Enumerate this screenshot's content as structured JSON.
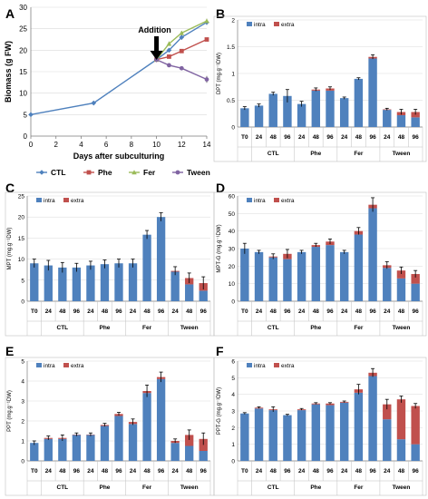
{
  "colors": {
    "intra": "#4F81BD",
    "extra": "#C0504D",
    "ctl": "#4F81BD",
    "phe": "#C0504D",
    "fer": "#9BBB59",
    "tween": "#8064A2",
    "grid": "#D9D9D9",
    "axis": "#808080",
    "text": "#000000"
  },
  "chart_data": [
    {
      "panel": "A",
      "type": "line",
      "xlabel": "Days after subculturing",
      "ylabel": "Biomass (g FW)",
      "xlim": [
        0,
        14
      ],
      "ylim": [
        0,
        30
      ],
      "xticks": [
        0,
        2,
        4,
        6,
        8,
        10,
        12,
        14
      ],
      "yticks": [
        0,
        5,
        10,
        15,
        20,
        25,
        30
      ],
      "annotation": "Addition",
      "annotation_x": 10,
      "legend_position": "bottom",
      "series": [
        {
          "name": "CTL",
          "x": [
            0,
            5,
            10,
            11,
            12,
            14
          ],
          "y": [
            5.0,
            7.7,
            17.8,
            20.0,
            23.0,
            26.5
          ],
          "errors": [
            0.1,
            0.5,
            0.5,
            0.4,
            0.6,
            0.6
          ]
        },
        {
          "name": "Phe",
          "x": [
            10,
            11,
            12,
            14
          ],
          "y": [
            17.8,
            18.5,
            19.8,
            22.5
          ],
          "errors": [
            0.5,
            0.4,
            0.4,
            0.4
          ]
        },
        {
          "name": "Fer",
          "x": [
            10,
            11,
            12,
            14
          ],
          "y": [
            17.8,
            21.5,
            24.0,
            26.8
          ],
          "errors": [
            0.5,
            0.5,
            0.5,
            0.5
          ]
        },
        {
          "name": "Tween",
          "x": [
            10,
            11,
            12,
            14
          ],
          "y": [
            17.8,
            16.5,
            15.8,
            13.2
          ],
          "errors": [
            0.5,
            0.4,
            0.4,
            0.8
          ]
        }
      ]
    },
    {
      "panel": "B",
      "type": "bar",
      "ylabel": "DPT (mg.g⁻¹DW)",
      "ylim": [
        0,
        2
      ],
      "yticks": [
        0,
        0.5,
        1,
        1.5,
        2
      ],
      "legend": [
        "intra",
        "extra"
      ],
      "categories": [
        "T0",
        "24",
        "48",
        "96",
        "24",
        "48",
        "96",
        "24",
        "48",
        "96",
        "24",
        "48",
        "96"
      ],
      "groups": [
        {
          "name": "CTL",
          "from": 1,
          "to": 3
        },
        {
          "name": "Phe",
          "from": 4,
          "to": 6
        },
        {
          "name": "Fer",
          "from": 7,
          "to": 9
        },
        {
          "name": "Tween",
          "from": 10,
          "to": 12
        }
      ],
      "series": [
        {
          "name": "intra",
          "values": [
            0.35,
            0.4,
            0.62,
            0.58,
            0.43,
            0.68,
            0.68,
            0.54,
            0.9,
            1.28,
            0.32,
            0.22,
            0.18
          ]
        },
        {
          "name": "extra",
          "values": [
            0.0,
            0.0,
            0.0,
            0.0,
            0.0,
            0.02,
            0.04,
            0.0,
            0.0,
            0.03,
            0.01,
            0.06,
            0.1
          ]
        }
      ],
      "errors": [
        0.03,
        0.03,
        0.03,
        0.12,
        0.05,
        0.03,
        0.03,
        0.02,
        0.02,
        0.04,
        0.02,
        0.05,
        0.05
      ]
    },
    {
      "panel": "C",
      "type": "bar",
      "ylabel": "MPT (mg.g⁻¹DW)",
      "ylim": [
        0,
        25
      ],
      "yticks": [
        0,
        5,
        10,
        15,
        20,
        25
      ],
      "legend": [
        "intra",
        "extra"
      ],
      "categories": [
        "T0",
        "24",
        "48",
        "96",
        "24",
        "48",
        "96",
        "24",
        "48",
        "96",
        "24",
        "48",
        "96"
      ],
      "groups": [
        {
          "name": "CTL",
          "from": 1,
          "to": 3
        },
        {
          "name": "Phe",
          "from": 4,
          "to": 6
        },
        {
          "name": "Fer",
          "from": 7,
          "to": 9
        },
        {
          "name": "Tween",
          "from": 10,
          "to": 12
        }
      ],
      "series": [
        {
          "name": "intra",
          "values": [
            9.0,
            8.5,
            8.0,
            8.0,
            8.5,
            8.8,
            9.0,
            9.0,
            15.8,
            20.0,
            7.0,
            4.0,
            2.5
          ]
        },
        {
          "name": "extra",
          "values": [
            0,
            0,
            0,
            0,
            0,
            0,
            0,
            0,
            0,
            0,
            0.2,
            1.5,
            1.8
          ]
        }
      ],
      "errors": [
        1.0,
        1.2,
        1.2,
        1.0,
        1.0,
        1.0,
        1.0,
        1.0,
        1.0,
        1.0,
        1.0,
        1.2,
        1.5
      ]
    },
    {
      "panel": "D",
      "type": "bar",
      "ylabel": "MPT-G (mg.g⁻¹DW)",
      "ylim": [
        0,
        60
      ],
      "yticks": [
        0,
        10,
        20,
        30,
        40,
        50,
        60
      ],
      "legend": [
        "intra",
        "extra"
      ],
      "categories": [
        "T0",
        "24",
        "48",
        "96",
        "24",
        "48",
        "96",
        "24",
        "48",
        "96",
        "24",
        "48",
        "96"
      ],
      "groups": [
        {
          "name": "CTL",
          "from": 1,
          "to": 3
        },
        {
          "name": "Phe",
          "from": 4,
          "to": 6
        },
        {
          "name": "Fer",
          "from": 7,
          "to": 9
        },
        {
          "name": "Tween",
          "from": 10,
          "to": 12
        }
      ],
      "series": [
        {
          "name": "intra",
          "values": [
            30.0,
            28.0,
            25.0,
            24.0,
            28.0,
            31.0,
            32.0,
            28.0,
            38.0,
            53.0,
            19.0,
            13.0,
            10.0
          ]
        },
        {
          "name": "extra",
          "values": [
            0.0,
            0.0,
            0.5,
            3.0,
            0.0,
            1.0,
            2.0,
            0.0,
            2.0,
            2.0,
            1.5,
            4.5,
            5.5
          ]
        }
      ],
      "errors": [
        3.0,
        1.0,
        1.5,
        2.5,
        1.0,
        1.0,
        1.5,
        1.0,
        2.0,
        4.0,
        2.0,
        2.0,
        2.0
      ]
    },
    {
      "panel": "E",
      "type": "bar",
      "ylabel": "PPT (mg.g⁻¹DW)",
      "ylim": [
        0,
        5
      ],
      "yticks": [
        0,
        1,
        2,
        3,
        4,
        5
      ],
      "legend": [
        "intra",
        "extra"
      ],
      "categories": [
        "T0",
        "24",
        "48",
        "96",
        "24",
        "48",
        "96",
        "24",
        "48",
        "96",
        "24",
        "48",
        "96"
      ],
      "groups": [
        {
          "name": "CTL",
          "from": 1,
          "to": 3
        },
        {
          "name": "Phe",
          "from": 4,
          "to": 6
        },
        {
          "name": "Fer",
          "from": 7,
          "to": 9
        },
        {
          "name": "Tween",
          "from": 10,
          "to": 12
        }
      ],
      "series": [
        {
          "name": "intra",
          "values": [
            0.9,
            1.1,
            1.1,
            1.3,
            1.3,
            1.75,
            2.25,
            1.85,
            3.4,
            4.1,
            0.9,
            0.75,
            0.5
          ]
        },
        {
          "name": "extra",
          "values": [
            0.0,
            0.05,
            0.05,
            0.02,
            0.02,
            0.05,
            0.1,
            0.1,
            0.1,
            0.1,
            0.1,
            0.55,
            0.6
          ]
        }
      ],
      "errors": [
        0.1,
        0.1,
        0.15,
        0.08,
        0.08,
        0.08,
        0.08,
        0.15,
        0.3,
        0.25,
        0.1,
        0.25,
        0.3
      ]
    },
    {
      "panel": "F",
      "type": "bar",
      "ylabel": "PPT-G (mg.g⁻¹DW)",
      "ylim": [
        0,
        6
      ],
      "yticks": [
        0,
        1,
        2,
        3,
        4,
        5,
        6
      ],
      "legend": [
        "intra",
        "extra"
      ],
      "categories": [
        "T0",
        "24",
        "48",
        "96",
        "24",
        "48",
        "96",
        "24",
        "48",
        "96",
        "24",
        "48",
        "96"
      ],
      "groups": [
        {
          "name": "CTL",
          "from": 1,
          "to": 3
        },
        {
          "name": "Phe",
          "from": 4,
          "to": 6
        },
        {
          "name": "Fer",
          "from": 7,
          "to": 9
        },
        {
          "name": "Tween",
          "from": 10,
          "to": 12
        }
      ],
      "series": [
        {
          "name": "intra",
          "values": [
            2.85,
            3.15,
            3.05,
            2.75,
            3.05,
            3.4,
            3.35,
            3.5,
            4.1,
            5.1,
            2.5,
            1.3,
            1.0
          ]
        },
        {
          "name": "extra",
          "values": [
            0.0,
            0.05,
            0.05,
            0.0,
            0.05,
            0.05,
            0.1,
            0.05,
            0.2,
            0.2,
            0.9,
            2.4,
            2.3
          ]
        }
      ],
      "errors": [
        0.05,
        0.05,
        0.15,
        0.05,
        0.05,
        0.05,
        0.05,
        0.05,
        0.3,
        0.25,
        0.3,
        0.2,
        0.15
      ]
    }
  ]
}
